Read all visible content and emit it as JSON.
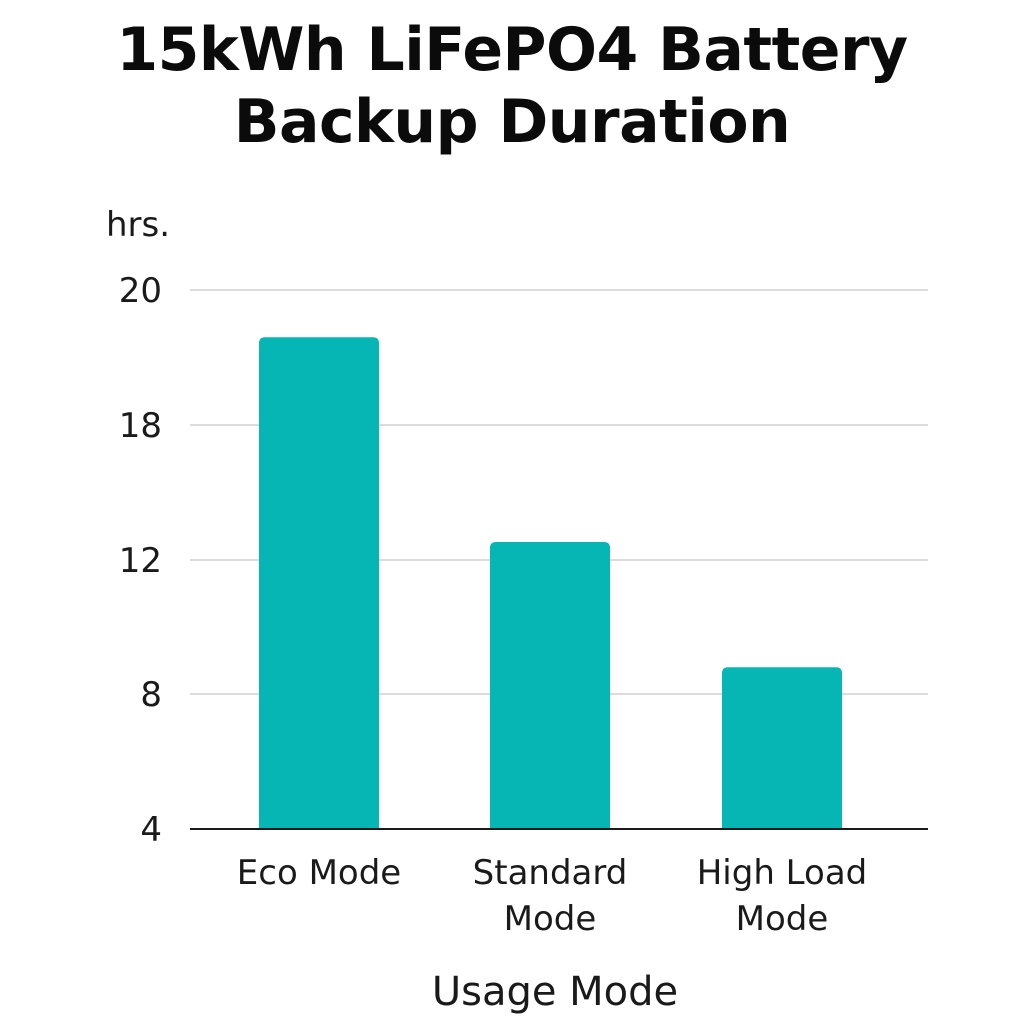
{
  "chart_data": {
    "type": "bar",
    "title_lines": [
      "15kWh LiFePO4 Battery",
      "Backup Duration"
    ],
    "y_unit": "hrs.",
    "xlabel": "Usage Mode",
    "categories": [
      [
        "Eco Mode"
      ],
      [
        "Standard",
        "Mode"
      ],
      [
        "High Load",
        "Mode"
      ]
    ],
    "values": [
      19.3,
      12.8,
      8.8
    ],
    "y_ticks": [
      "20",
      "18",
      "12",
      "8",
      "4"
    ],
    "grid": true,
    "bar_color": "#06b6b4",
    "grid_color": "#c8c8c8",
    "axis_color": "#1a1a1a"
  }
}
